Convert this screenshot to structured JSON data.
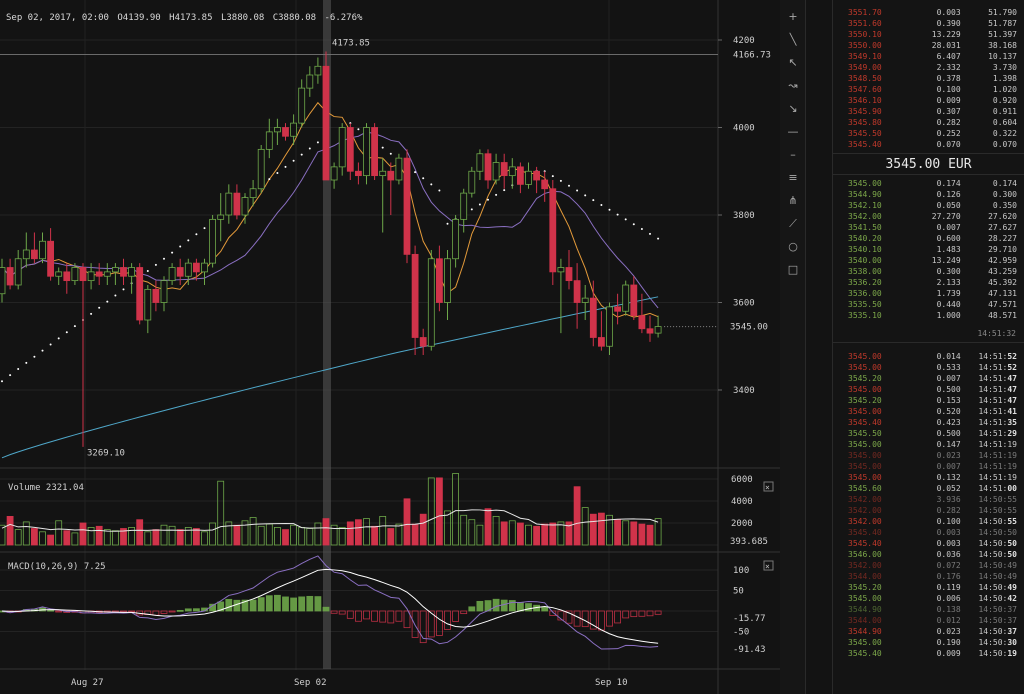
{
  "header": {
    "date": "Sep 02, 2017, 02:00",
    "open": "O4139.90",
    "high": "H4173.85",
    "low": "L3880.08",
    "close": "C3880.08",
    "change": "-6.276%"
  },
  "price_axis": [
    "4200",
    "4000",
    "3800",
    "3600",
    "3400"
  ],
  "price_labels": {
    "high_line": "4166.73",
    "last_price": "3545.00",
    "peak_label": "4173.85",
    "low_label": "3269.10"
  },
  "volume_pane": {
    "title": "Volume 2321.04",
    "axis": [
      "6000",
      "4000",
      "2000"
    ],
    "last": "393.685",
    "close_icon": "×"
  },
  "macd_pane": {
    "title": "MACD(10,26,9) 7.25",
    "axis": [
      "100",
      "50",
      "-50"
    ],
    "signal_label": "-15.77",
    "macd_label": "-91.43",
    "close_icon": "×"
  },
  "time_axis": [
    "Aug 27",
    "Sep 02",
    "Sep 10"
  ],
  "toolbar": {
    "tools": [
      {
        "name": "crosshair-icon",
        "glyph": "+"
      },
      {
        "name": "trend-line-icon",
        "glyph": "╲"
      },
      {
        "name": "arrow-line-icon",
        "glyph": "↖"
      },
      {
        "name": "ray-icon",
        "glyph": "↝"
      },
      {
        "name": "extended-line-icon",
        "glyph": "↘"
      },
      {
        "name": "horizontal-line-icon",
        "glyph": "—"
      },
      {
        "name": "horizontal-ray-icon",
        "glyph": "–"
      },
      {
        "name": "parallel-channel-icon",
        "glyph": "≡"
      },
      {
        "name": "pitchfork-icon",
        "glyph": "⋔"
      },
      {
        "name": "fib-fan-icon",
        "glyph": "⟋"
      },
      {
        "name": "circle-icon",
        "glyph": "○"
      },
      {
        "name": "rectangle-icon",
        "glyph": "□"
      }
    ]
  },
  "order_book": {
    "asks": [
      [
        "3551.70",
        "0.003",
        "51.790"
      ],
      [
        "3551.60",
        "0.390",
        "51.787"
      ],
      [
        "3550.10",
        "13.229",
        "51.397"
      ],
      [
        "3550.00",
        "28.031",
        "38.168"
      ],
      [
        "3549.10",
        "6.407",
        "10.137"
      ],
      [
        "3549.00",
        "2.332",
        "3.730"
      ],
      [
        "3548.50",
        "0.378",
        "1.398"
      ],
      [
        "3547.60",
        "0.100",
        "1.020"
      ],
      [
        "3546.10",
        "0.009",
        "0.920"
      ],
      [
        "3545.90",
        "0.307",
        "0.911"
      ],
      [
        "3545.80",
        "0.282",
        "0.604"
      ],
      [
        "3545.50",
        "0.252",
        "0.322"
      ],
      [
        "3545.40",
        "0.070",
        "0.070"
      ]
    ],
    "mid_price": "3545.00 EUR",
    "bids": [
      [
        "3545.00",
        "0.174",
        "0.174"
      ],
      [
        "3544.90",
        "0.126",
        "0.300"
      ],
      [
        "3542.10",
        "0.050",
        "0.350"
      ],
      [
        "3542.00",
        "27.270",
        "27.620"
      ],
      [
        "3541.50",
        "0.007",
        "27.627"
      ],
      [
        "3540.20",
        "0.600",
        "28.227"
      ],
      [
        "3540.10",
        "1.483",
        "29.710"
      ],
      [
        "3540.00",
        "13.249",
        "42.959"
      ],
      [
        "3538.00",
        "0.300",
        "43.259"
      ],
      [
        "3536.20",
        "2.133",
        "45.392"
      ],
      [
        "3536.00",
        "1.739",
        "47.131"
      ],
      [
        "3535.50",
        "0.440",
        "47.571"
      ],
      [
        "3535.10",
        "1.000",
        "48.571"
      ]
    ],
    "updated": "14:51:32"
  },
  "trades": [
    {
      "price": "3545.00",
      "side": "sell",
      "size": "0.014",
      "time_a": "14:51:",
      "time_b": "52"
    },
    {
      "price": "3545.00",
      "side": "sell",
      "size": "0.533",
      "time_a": "14:51:",
      "time_b": "52"
    },
    {
      "price": "3545.20",
      "side": "buy",
      "size": "0.007",
      "time_a": "14:51:",
      "time_b": "47"
    },
    {
      "price": "3545.00",
      "side": "sell",
      "size": "0.500",
      "time_a": "14:51:",
      "time_b": "47"
    },
    {
      "price": "3545.20",
      "side": "buy",
      "size": "0.153",
      "time_a": "14:51:",
      "time_b": "47"
    },
    {
      "price": "3545.00",
      "side": "sell",
      "size": "0.520",
      "time_a": "14:51:",
      "time_b": "41"
    },
    {
      "price": "3545.40",
      "side": "sell",
      "size": "0.423",
      "time_a": "14:51:",
      "time_b": "35"
    },
    {
      "price": "3545.50",
      "side": "buy",
      "size": "0.500",
      "time_a": "14:51:",
      "time_b": "29"
    },
    {
      "price": "3545.00",
      "side": "buy",
      "size": "0.147",
      "time_a": "14:51:19",
      "time_b": ""
    },
    {
      "price": "3545.00",
      "side": "sell",
      "size": "0.023",
      "time_a": "14:51:19",
      "time_b": "",
      "dim": true
    },
    {
      "price": "3545.00",
      "side": "sell",
      "size": "0.007",
      "time_a": "14:51:19",
      "time_b": "",
      "dim": true
    },
    {
      "price": "3545.00",
      "side": "sell",
      "size": "0.132",
      "time_a": "14:51:19",
      "time_b": ""
    },
    {
      "price": "3545.60",
      "side": "buy",
      "size": "0.052",
      "time_a": "14:51:",
      "time_b": "00"
    },
    {
      "price": "3542.00",
      "side": "sell",
      "size": "3.936",
      "time_a": "14:50:55",
      "time_b": "",
      "dim": true
    },
    {
      "price": "3542.00",
      "side": "sell",
      "size": "0.282",
      "time_a": "14:50:55",
      "time_b": "",
      "dim": true
    },
    {
      "price": "3542.00",
      "side": "sell",
      "size": "0.100",
      "time_a": "14:50:",
      "time_b": "55"
    },
    {
      "price": "3545.40",
      "side": "sell",
      "size": "0.003",
      "time_a": "14:50:50",
      "time_b": "",
      "dim": true
    },
    {
      "price": "3545.40",
      "side": "sell",
      "size": "0.003",
      "time_a": "14:50:",
      "time_b": "50"
    },
    {
      "price": "3546.00",
      "side": "buy",
      "size": "0.036",
      "time_a": "14:50:",
      "time_b": "50"
    },
    {
      "price": "3542.00",
      "side": "sell",
      "size": "0.072",
      "time_a": "14:50:49",
      "time_b": "",
      "dim": true
    },
    {
      "price": "3544.00",
      "side": "sell",
      "size": "0.176",
      "time_a": "14:50:49",
      "time_b": "",
      "dim": true
    },
    {
      "price": "3545.20",
      "side": "buy",
      "size": "0.119",
      "time_a": "14:50:",
      "time_b": "49"
    },
    {
      "price": "3545.00",
      "side": "buy",
      "size": "0.006",
      "time_a": "14:50:",
      "time_b": "42"
    },
    {
      "price": "3544.90",
      "side": "buy",
      "size": "0.138",
      "time_a": "14:50:37",
      "time_b": "",
      "dim": true
    },
    {
      "price": "3544.00",
      "side": "sell",
      "size": "0.012",
      "time_a": "14:50:37",
      "time_b": "",
      "dim": true
    },
    {
      "price": "3544.90",
      "side": "sell",
      "size": "0.023",
      "time_a": "14:50:",
      "time_b": "37"
    },
    {
      "price": "3545.00",
      "side": "buy",
      "size": "0.190",
      "time_a": "14:50:",
      "time_b": "30"
    },
    {
      "price": "3545.40",
      "side": "buy",
      "size": "0.009",
      "time_a": "14:50:",
      "time_b": "19"
    }
  ],
  "colors": {
    "bull": "#6ea84a",
    "bear": "#d0334a",
    "ma_fast": "#e39a3a",
    "ma_slow": "#8a6fc2",
    "ma_long": "#4fa7c9",
    "psar": "#ffffff"
  },
  "chart_data": {
    "type": "candlestick",
    "symbol_interval": "6h",
    "candles": [
      [
        3620,
        3700,
        3600,
        3680
      ],
      [
        3680,
        3700,
        3630,
        3640
      ],
      [
        3640,
        3720,
        3630,
        3700
      ],
      [
        3700,
        3760,
        3680,
        3720
      ],
      [
        3720,
        3760,
        3690,
        3700
      ],
      [
        3700,
        3760,
        3690,
        3740
      ],
      [
        3740,
        3770,
        3650,
        3660
      ],
      [
        3660,
        3680,
        3640,
        3670
      ],
      [
        3670,
        3690,
        3620,
        3650
      ],
      [
        3650,
        3690,
        3640,
        3680
      ],
      [
        3680,
        3690,
        3270,
        3650
      ],
      [
        3650,
        3690,
        3630,
        3670
      ],
      [
        3670,
        3690,
        3640,
        3660
      ],
      [
        3660,
        3690,
        3640,
        3670
      ],
      [
        3670,
        3690,
        3640,
        3680
      ],
      [
        3680,
        3700,
        3640,
        3660
      ],
      [
        3660,
        3690,
        3620,
        3680
      ],
      [
        3680,
        3690,
        3550,
        3560
      ],
      [
        3560,
        3640,
        3530,
        3630
      ],
      [
        3630,
        3650,
        3580,
        3600
      ],
      [
        3600,
        3660,
        3580,
        3650
      ],
      [
        3650,
        3690,
        3640,
        3680
      ],
      [
        3680,
        3700,
        3640,
        3660
      ],
      [
        3660,
        3700,
        3640,
        3690
      ],
      [
        3690,
        3700,
        3650,
        3670
      ],
      [
        3670,
        3700,
        3640,
        3690
      ],
      [
        3690,
        3800,
        3680,
        3790
      ],
      [
        3790,
        3850,
        3740,
        3800
      ],
      [
        3800,
        3870,
        3780,
        3850
      ],
      [
        3850,
        3870,
        3790,
        3800
      ],
      [
        3800,
        3850,
        3780,
        3840
      ],
      [
        3840,
        3880,
        3820,
        3860
      ],
      [
        3860,
        3960,
        3850,
        3950
      ],
      [
        3950,
        4020,
        3930,
        3990
      ],
      [
        3990,
        4020,
        3960,
        4000
      ],
      [
        4000,
        4010,
        3970,
        3980
      ],
      [
        3980,
        4030,
        3960,
        4010
      ],
      [
        4010,
        4110,
        4000,
        4090
      ],
      [
        4090,
        4140,
        4070,
        4120
      ],
      [
        4120,
        4160,
        4100,
        4139.9
      ],
      [
        4139.9,
        4173.85,
        3880.08,
        3880.08
      ],
      [
        3880,
        3920,
        3860,
        3910
      ],
      [
        3910,
        4010,
        3890,
        4000
      ],
      [
        4000,
        4010,
        3880,
        3900
      ],
      [
        3900,
        3920,
        3870,
        3890
      ],
      [
        3890,
        4010,
        3870,
        4000
      ],
      [
        4000,
        4010,
        3880,
        3890
      ],
      [
        3890,
        3930,
        3760,
        3900
      ],
      [
        3900,
        3920,
        3800,
        3880
      ],
      [
        3880,
        3940,
        3870,
        3930
      ],
      [
        3930,
        3950,
        3690,
        3710
      ],
      [
        3710,
        3730,
        3480,
        3520
      ],
      [
        3520,
        3540,
        3480,
        3500
      ],
      [
        3500,
        3720,
        3490,
        3700
      ],
      [
        3700,
        3730,
        3580,
        3600
      ],
      [
        3600,
        3720,
        3560,
        3700
      ],
      [
        3700,
        3800,
        3680,
        3790
      ],
      [
        3790,
        3860,
        3760,
        3850
      ],
      [
        3850,
        3910,
        3840,
        3900
      ],
      [
        3900,
        3950,
        3880,
        3940
      ],
      [
        3940,
        3950,
        3860,
        3880
      ],
      [
        3880,
        3940,
        3870,
        3920
      ],
      [
        3920,
        3940,
        3860,
        3890
      ],
      [
        3890,
        3930,
        3860,
        3910
      ],
      [
        3910,
        3920,
        3850,
        3870
      ],
      [
        3870,
        3920,
        3860,
        3900
      ],
      [
        3900,
        3910,
        3850,
        3880
      ],
      [
        3880,
        3900,
        3830,
        3860
      ],
      [
        3860,
        3880,
        3640,
        3670
      ],
      [
        3670,
        3700,
        3530,
        3680
      ],
      [
        3680,
        3720,
        3630,
        3650
      ],
      [
        3650,
        3690,
        3540,
        3600
      ],
      [
        3600,
        3640,
        3560,
        3610
      ],
      [
        3610,
        3650,
        3500,
        3520
      ],
      [
        3520,
        3580,
        3490,
        3500
      ],
      [
        3500,
        3600,
        3480,
        3590
      ],
      [
        3590,
        3620,
        3550,
        3580
      ],
      [
        3580,
        3650,
        3570,
        3640
      ],
      [
        3640,
        3660,
        3560,
        3570
      ],
      [
        3570,
        3620,
        3530,
        3540
      ],
      [
        3540,
        3570,
        3510,
        3530
      ],
      [
        3530,
        3570,
        3520,
        3545
      ]
    ],
    "volume": [
      1800,
      2600,
      1400,
      2100,
      1500,
      1200,
      900,
      2200,
      1300,
      1100,
      2000,
      1600,
      1700,
      1400,
      1300,
      1500,
      1600,
      2300,
      1200,
      1400,
      1800,
      1700,
      1400,
      1600,
      1500,
      1200,
      2000,
      5800,
      2100,
      1800,
      2200,
      2500,
      1700,
      1900,
      1600,
      1400,
      1800,
      1600,
      1500,
      2000,
      2400,
      1800,
      1600,
      2100,
      2300,
      2400,
      1700,
      2600,
      1500,
      1900,
      4200,
      1900,
      2800,
      6100,
      6100,
      3100,
      6500,
      2700,
      2300,
      1800,
      3300,
      2600,
      2100,
      2200,
      2000,
      1800,
      1700,
      1900,
      2000,
      2100,
      2100,
      5300,
      3400,
      2800,
      2900,
      2700,
      2300,
      2200,
      2100,
      1900,
      1800,
      2400
    ]
  }
}
